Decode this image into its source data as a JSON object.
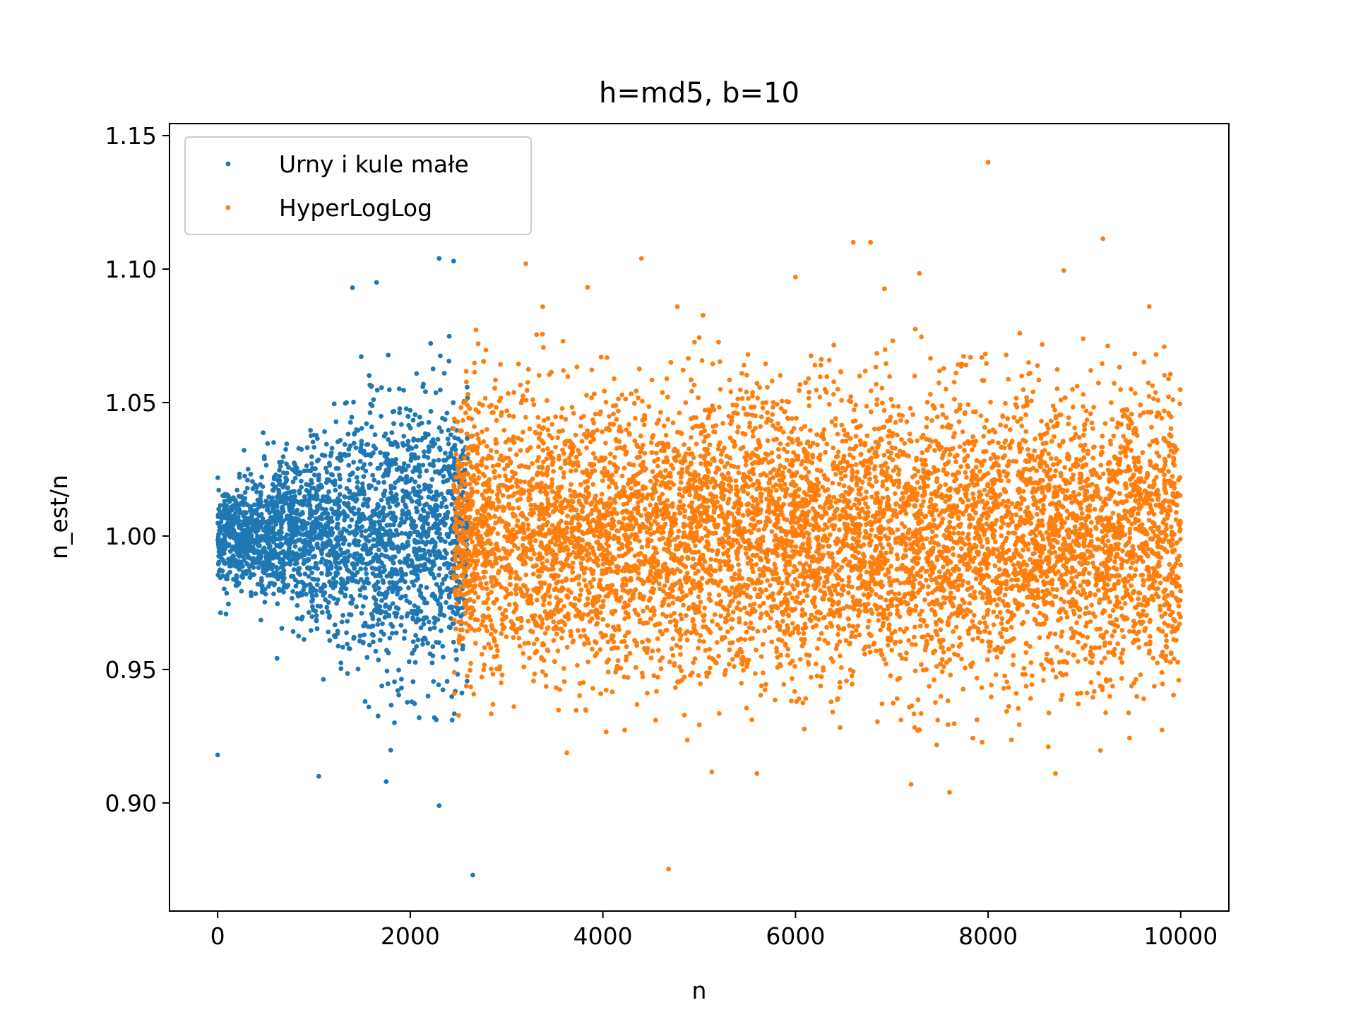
{
  "chart_data": {
    "type": "scatter",
    "title": "h=md5, b=10",
    "xlabel": "n",
    "ylabel": "n_est/n",
    "xlim": [
      -500,
      10500
    ],
    "ylim": [
      0.8595,
      1.1545
    ],
    "xticks": [
      0,
      2000,
      4000,
      6000,
      8000,
      10000
    ],
    "xtick_labels": [
      "0",
      "2000",
      "4000",
      "6000",
      "8000",
      "10000"
    ],
    "yticks": [
      0.9,
      0.95,
      1.0,
      1.05,
      1.1,
      1.15
    ],
    "ytick_labels": [
      "0.90",
      "0.95",
      "1.00",
      "1.05",
      "1.10",
      "1.15"
    ],
    "grid": false,
    "legend_position": "top-left",
    "series": [
      {
        "name": "Urny i kule małe",
        "color": "#1f77b4",
        "x_range": [
          0,
          2600
        ],
        "approx_points": 2600,
        "notable_points": [
          {
            "x": 0,
            "y": 0.918
          },
          {
            "x": 1050,
            "y": 0.91
          },
          {
            "x": 1750,
            "y": 0.908
          },
          {
            "x": 2300,
            "y": 0.899
          },
          {
            "x": 2650,
            "y": 0.873
          },
          {
            "x": 2300,
            "y": 1.104
          },
          {
            "x": 2450,
            "y": 1.103
          },
          {
            "x": 1650,
            "y": 1.095
          },
          {
            "x": 1400,
            "y": 1.093
          }
        ]
      },
      {
        "name": "HyperLogLog",
        "color": "#ff7f0e",
        "x_range": [
          2450,
          10000
        ],
        "approx_points": 7550,
        "notable_points": [
          {
            "x": 8000,
            "y": 1.14
          },
          {
            "x": 6600,
            "y": 1.11
          },
          {
            "x": 6780,
            "y": 1.11
          },
          {
            "x": 4400,
            "y": 1.104
          },
          {
            "x": 3200,
            "y": 1.102
          },
          {
            "x": 6000,
            "y": 1.097
          },
          {
            "x": 7600,
            "y": 0.904
          },
          {
            "x": 7200,
            "y": 0.907
          },
          {
            "x": 5600,
            "y": 0.911
          },
          {
            "x": 8700,
            "y": 0.911
          }
        ]
      }
    ]
  }
}
